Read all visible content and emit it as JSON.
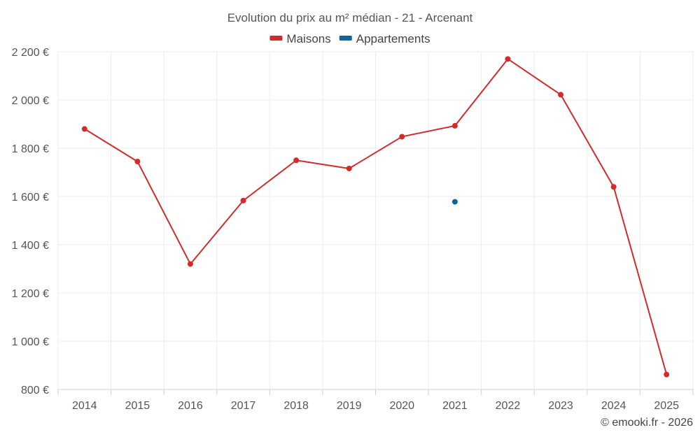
{
  "chart_data": {
    "type": "line",
    "title": "Evolution du prix au m² médian - 21 - Arcenant",
    "categories": [
      "2014",
      "2015",
      "2016",
      "2017",
      "2018",
      "2019",
      "2020",
      "2021",
      "2022",
      "2023",
      "2024",
      "2025"
    ],
    "ylim": [
      800,
      2200
    ],
    "yticks": [
      800,
      1000,
      1200,
      1400,
      1600,
      1800,
      2000,
      2200
    ],
    "ytick_labels": [
      "800 €",
      "1 000 €",
      "1 200 €",
      "1 400 €",
      "1 600 €",
      "1 800 €",
      "2 000 €",
      "2 200 €"
    ],
    "grid": true,
    "legend_position": "top-center",
    "series": [
      {
        "name": "Maisons",
        "color": "#d42a2a",
        "values": [
          1880,
          1745,
          1320,
          1583,
          1750,
          1716,
          1848,
          1893,
          2170,
          2022,
          1640,
          862
        ]
      },
      {
        "name": "Appartements",
        "color": "#0c66a0",
        "values": [
          null,
          null,
          null,
          null,
          null,
          null,
          null,
          1578,
          null,
          null,
          null,
          null
        ]
      }
    ]
  },
  "credit": "© emooki.fr - 2026"
}
